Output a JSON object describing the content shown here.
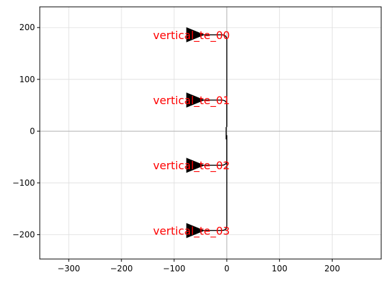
{
  "chart_data": {
    "type": "scatter",
    "title": "",
    "xlabel": "",
    "ylabel": "",
    "xlim": [
      -355,
      293
    ],
    "ylim": [
      -247,
      240
    ],
    "xticks": [
      -300,
      -200,
      -100,
      0,
      100,
      200
    ],
    "yticks": [
      -200,
      -100,
      0,
      100,
      200
    ],
    "xtick_labels": [
      "−300",
      "−200",
      "−100",
      "0",
      "100",
      "200"
    ],
    "ytick_labels": [
      "−200",
      "−100",
      "0",
      "100",
      "200"
    ],
    "grid": true,
    "axis_lines_at_zero": true,
    "colors": {
      "grid": "#dddddd",
      "zero_axis": "#b3b3b3",
      "trace": "#000000",
      "port": "#000000",
      "label": "#ff0000"
    },
    "route_x": 0,
    "bend_radius": 10,
    "ports": [
      {
        "name": "vertical_te_00",
        "x": -60,
        "y": 186,
        "label_x": -140,
        "label_y": 186
      },
      {
        "name": "vertical_te_01",
        "x": -60,
        "y": 60,
        "label_x": -140,
        "label_y": 60
      },
      {
        "name": "vertical_te_02",
        "x": -60,
        "y": -66,
        "label_x": -140,
        "label_y": -66
      },
      {
        "name": "vertical_te_03",
        "x": -60,
        "y": -192,
        "label_x": -140,
        "label_y": -192
      }
    ]
  }
}
